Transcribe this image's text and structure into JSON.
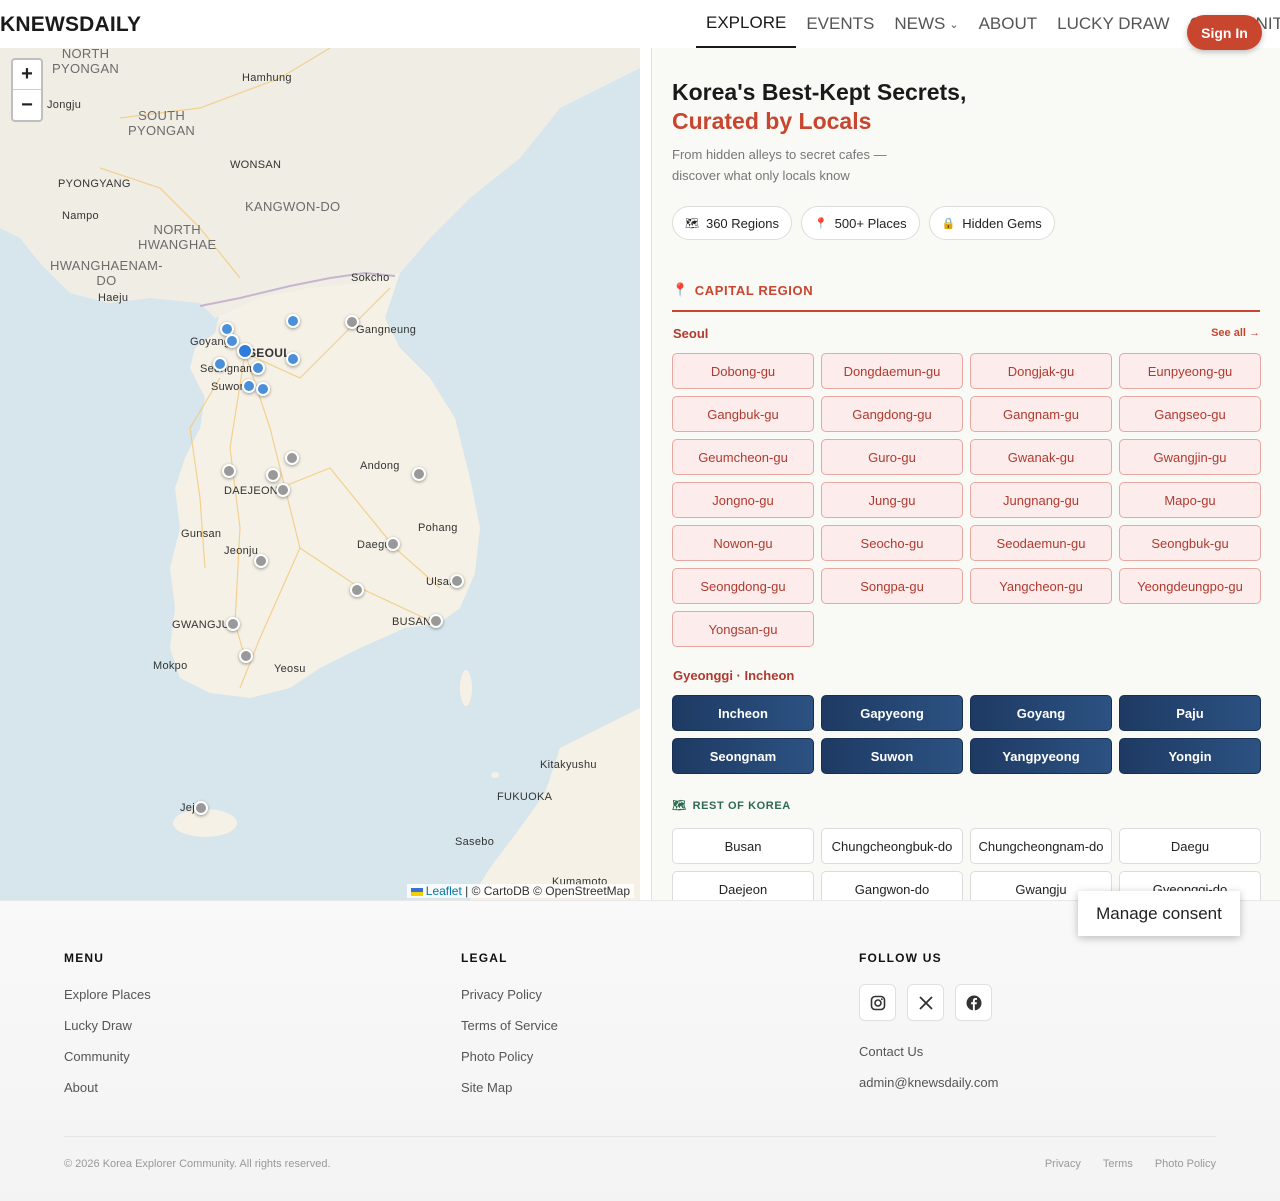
{
  "header": {
    "logo": "KNEWSDAILY",
    "nav": [
      {
        "label": "EXPLORE",
        "active": true
      },
      {
        "label": "EVENTS"
      },
      {
        "label": "NEWS",
        "dropdown": true
      },
      {
        "label": "ABOUT"
      },
      {
        "label": "LUCKY DRAW"
      },
      {
        "label": "COMMUNITY",
        "dropdown": true
      }
    ],
    "signin": "Sign In"
  },
  "map": {
    "zoom_in": "+",
    "zoom_out": "−",
    "labels": {
      "north_pyongan": "NORTH\nPYONGAN",
      "south_pyongan": "SOUTH\nPYONGAN",
      "north_hwanghae": "NORTH\nHWANGHAE",
      "south_hwanghae": "HWANGHAENAM-\nDO",
      "kangwon": "KANGWON-DO",
      "hamhung": "Hamhung",
      "jongju": "Jongju",
      "wonsan": "WONSAN",
      "pyongyang": "PYONGYANG",
      "nampo": "Nampo",
      "haeju": "Haeju",
      "sokcho": "Sokcho",
      "gangneung": "Gangneung",
      "goyang": "Goyang",
      "seoul": "SEOUL",
      "seongnam": "Seongnam",
      "suwon": "Suwon",
      "daejeon": "DAEJEON",
      "andong": "Andong",
      "gunsan": "Gunsan",
      "jeonju": "Jeonju",
      "pohang": "Pohang",
      "daegu": "Daegu",
      "ulsan": "Ulsan",
      "gwangju": "GWANGJU",
      "busan": "BUSAN",
      "mokpo": "Mokpo",
      "yeosu": "Yeosu",
      "jeju": "Jeju",
      "kitakyushu": "Kitakyushu",
      "fukuoka": "FUKUOKA",
      "sasebo": "Sasebo",
      "kumamoto": "Kumamoto"
    },
    "attribution": {
      "leaflet": "Leaflet",
      "rest": " | © CartoDB © OpenStreetMap"
    }
  },
  "panel": {
    "headline_1": "Korea's Best-Kept Secrets,",
    "headline_2": "Curated by Locals",
    "subtitle": "From hidden alleys to secret cafes — discover what only locals know",
    "chips": [
      {
        "icon": "map-icon",
        "glyph": "🗺",
        "label": "360 Regions"
      },
      {
        "icon": "pin-icon",
        "glyph": "📍",
        "label": "500+ Places"
      },
      {
        "icon": "lock-icon",
        "glyph": "🔒",
        "label": "Hidden Gems"
      }
    ],
    "capital_region": "CAPITAL REGION",
    "seoul_heading": "Seoul",
    "see_all": "See all →",
    "seoul_districts": [
      "Dobong-gu",
      "Dongdaemun-gu",
      "Dongjak-gu",
      "Eunpyeong-gu",
      "Gangbuk-gu",
      "Gangdong-gu",
      "Gangnam-gu",
      "Gangseo-gu",
      "Geumcheon-gu",
      "Guro-gu",
      "Gwanak-gu",
      "Gwangjin-gu",
      "Jongno-gu",
      "Jung-gu",
      "Jungnang-gu",
      "Mapo-gu",
      "Nowon-gu",
      "Seocho-gu",
      "Seodaemun-gu",
      "Seongbuk-gu",
      "Seongdong-gu",
      "Songpa-gu",
      "Yangcheon-gu",
      "Yeongdeungpo-gu",
      "Yongsan-gu"
    ],
    "gyeonggi_heading": "Gyeonggi · Incheon",
    "gyeonggi_cities": [
      "Incheon",
      "Gapyeong",
      "Goyang",
      "Paju",
      "Seongnam",
      "Suwon",
      "Yangpyeong",
      "Yongin"
    ],
    "rest_of_korea": "REST OF KOREA",
    "rest_regions": [
      "Busan",
      "Chungcheongbuk-do",
      "Chungcheongnam-do",
      "Daegu",
      "Daejeon",
      "Gangwon-do",
      "Gwangju",
      "Gyeonggi-do"
    ]
  },
  "consent": "Manage consent",
  "footer": {
    "menu_title": "MENU",
    "menu": [
      "Explore Places",
      "Lucky Draw",
      "Community",
      "About"
    ],
    "legal_title": "LEGAL",
    "legal": [
      "Privacy Policy",
      "Terms of Service",
      "Photo Policy",
      "Site Map"
    ],
    "follow_title": "FOLLOW US",
    "socials": [
      "instagram-icon",
      "x-icon",
      "facebook-icon"
    ],
    "contact": "Contact Us",
    "email": "admin@knewsdaily.com",
    "copyright": "© 2026 Korea Explorer Community. All rights reserved.",
    "bottom_links": [
      "Privacy",
      "Terms",
      "Photo Policy"
    ]
  },
  "colors": {
    "accent": "#c8452e",
    "navy": "#1e3a63",
    "marker_blue": "#4a90d9",
    "marker_gray": "#999999"
  }
}
